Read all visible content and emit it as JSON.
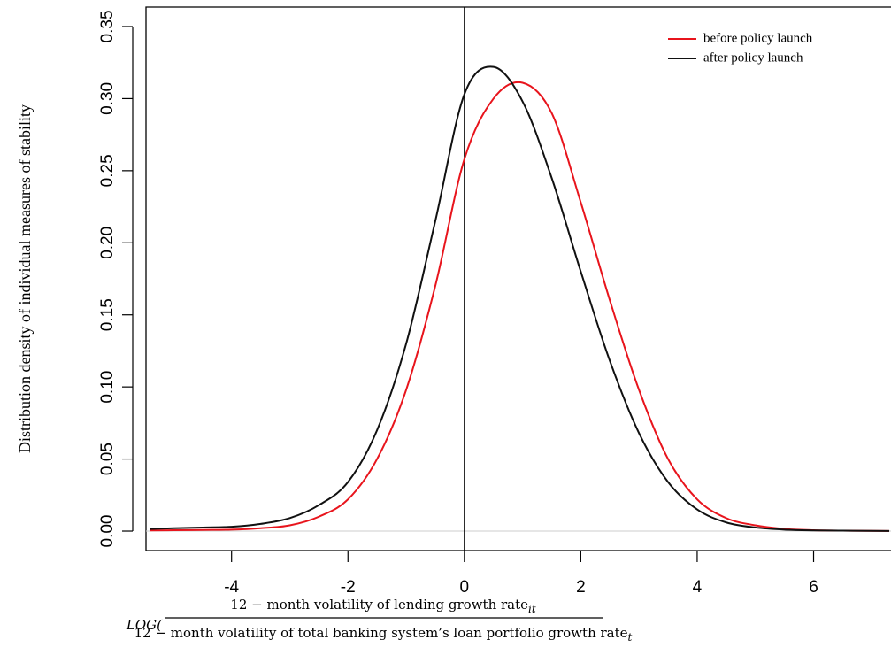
{
  "chart_data": {
    "type": "line",
    "y_label": "Distribution density of individual measures of stability",
    "x_label": {
      "prefix": "LOG(",
      "numerator": "12 − month volatility of lending growth rate",
      "numerator_sub": "it",
      "denominator": "12 − month volatility of total banking system’s loan portfolio growth rate",
      "denominator_sub": "t"
    },
    "x": [
      -5.4,
      -5,
      -4.5,
      -4,
      -3.5,
      -3,
      -2.5,
      -2,
      -1.5,
      -1,
      -0.5,
      0,
      0.5,
      1,
      1.5,
      2,
      2.5,
      3,
      3.5,
      4,
      4.5,
      5,
      5.5,
      6,
      6.5,
      7,
      7.3
    ],
    "series": [
      {
        "name": "before policy launch",
        "color": "#e8141c",
        "values": [
          0.0005,
          0.0006,
          0.0008,
          0.001,
          0.002,
          0.004,
          0.01,
          0.022,
          0.05,
          0.098,
          0.17,
          0.258,
          0.3,
          0.311,
          0.29,
          0.228,
          0.16,
          0.098,
          0.05,
          0.022,
          0.009,
          0.004,
          0.0015,
          0.0006,
          0.0003,
          0.0002,
          0.0001
        ]
      },
      {
        "name": "after policy launch",
        "color": "#111111",
        "values": [
          0.0015,
          0.002,
          0.0025,
          0.003,
          0.005,
          0.009,
          0.018,
          0.034,
          0.07,
          0.13,
          0.215,
          0.303,
          0.322,
          0.298,
          0.245,
          0.18,
          0.118,
          0.068,
          0.034,
          0.015,
          0.006,
          0.0025,
          0.001,
          0.0005,
          0.0003,
          0.0002,
          0.0001
        ]
      }
    ],
    "xlim": [
      -5.47,
      7.33
    ],
    "ylim": [
      -0.0135,
      0.3635
    ],
    "xticks": [
      -4,
      -2,
      0,
      2,
      4,
      6
    ],
    "yticks": [
      {
        "value": 0,
        "label": "0.00"
      },
      {
        "value": 0.05,
        "label": "0.05"
      },
      {
        "value": 0.1,
        "label": "0.10"
      },
      {
        "value": 0.15,
        "label": "0.15"
      },
      {
        "value": 0.2,
        "label": "0.20"
      },
      {
        "value": 0.25,
        "label": "0.25"
      },
      {
        "value": 0.3,
        "label": "0.30"
      },
      {
        "value": 0.35,
        "label": "0.35"
      }
    ],
    "vline": 0,
    "hline": 0,
    "legend": "top-right"
  }
}
